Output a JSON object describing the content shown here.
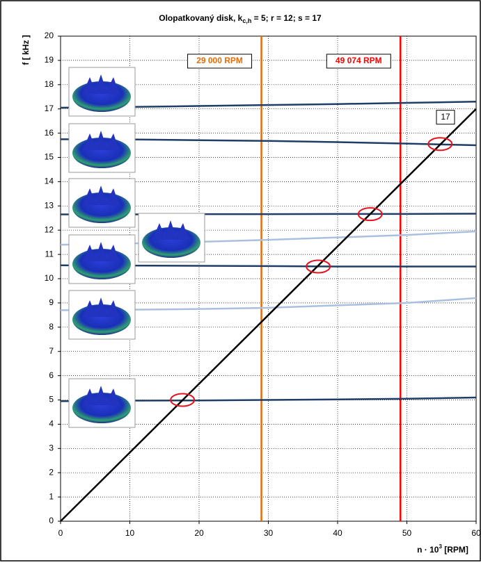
{
  "chart_data": {
    "type": "line",
    "title": [
      "Olopatkovaný disk, k",
      "c,h",
      " = 5; r = 12; s = 17"
    ],
    "xlabel": [
      "n · 10",
      "3",
      " [RPM]"
    ],
    "ylabel": "f [ kHz ]",
    "xlim": [
      0,
      60
    ],
    "ylim": [
      0,
      20
    ],
    "xticks": [
      0,
      10,
      20,
      30,
      40,
      50,
      60
    ],
    "yticks": [
      0,
      1,
      2,
      3,
      4,
      5,
      6,
      7,
      8,
      9,
      10,
      11,
      12,
      13,
      14,
      15,
      16,
      17,
      18,
      19,
      20
    ],
    "grid": true,
    "series": [
      {
        "color": "#1f3d66",
        "x": [
          0,
          10,
          20,
          30,
          40,
          50,
          60
        ],
        "values": [
          17.05,
          17.08,
          17.12,
          17.16,
          17.2,
          17.25,
          17.3
        ]
      },
      {
        "color": "#1f3d66",
        "x": [
          0,
          10,
          20,
          30,
          40,
          50,
          60
        ],
        "values": [
          15.75,
          15.74,
          15.71,
          15.68,
          15.63,
          15.57,
          15.5
        ]
      },
      {
        "color": "#1f3d66",
        "x": [
          0,
          10,
          20,
          30,
          40,
          50,
          60
        ],
        "values": [
          12.65,
          12.65,
          12.66,
          12.66,
          12.67,
          12.67,
          12.68
        ]
      },
      {
        "color": "#a9c1df",
        "x": [
          0,
          10,
          20,
          30,
          40,
          50,
          60
        ],
        "values": [
          11.4,
          11.45,
          11.52,
          11.6,
          11.7,
          11.8,
          11.95
        ]
      },
      {
        "color": "#1f3d66",
        "x": [
          0,
          10,
          20,
          30,
          40,
          50,
          60
        ],
        "values": [
          10.55,
          10.54,
          10.53,
          10.52,
          10.5,
          10.5,
          10.5
        ]
      },
      {
        "color": "#a9c1df",
        "x": [
          0,
          10,
          20,
          30,
          40,
          50,
          60
        ],
        "values": [
          8.7,
          8.72,
          8.75,
          8.8,
          8.9,
          9.0,
          9.2
        ]
      },
      {
        "color": "#1f3d66",
        "x": [
          0,
          10,
          20,
          30,
          40,
          50,
          60
        ],
        "values": [
          4.95,
          4.97,
          4.98,
          5.0,
          5.02,
          5.05,
          5.1
        ]
      },
      {
        "name": "17",
        "color": "#000000",
        "x": [
          0,
          60
        ],
        "values": [
          0,
          17
        ]
      }
    ],
    "vlines": [
      {
        "x": 29,
        "label": "29 000 RPM",
        "color": "#e36c09"
      },
      {
        "x": 49.074,
        "label": "49 074 RPM",
        "color": "#ff0000"
      }
    ],
    "markers": {
      "color": "#e8101a",
      "x": [
        17.6,
        37.2,
        44.7,
        54.8
      ],
      "y": [
        5.0,
        10.5,
        12.66,
        15.55
      ]
    }
  }
}
